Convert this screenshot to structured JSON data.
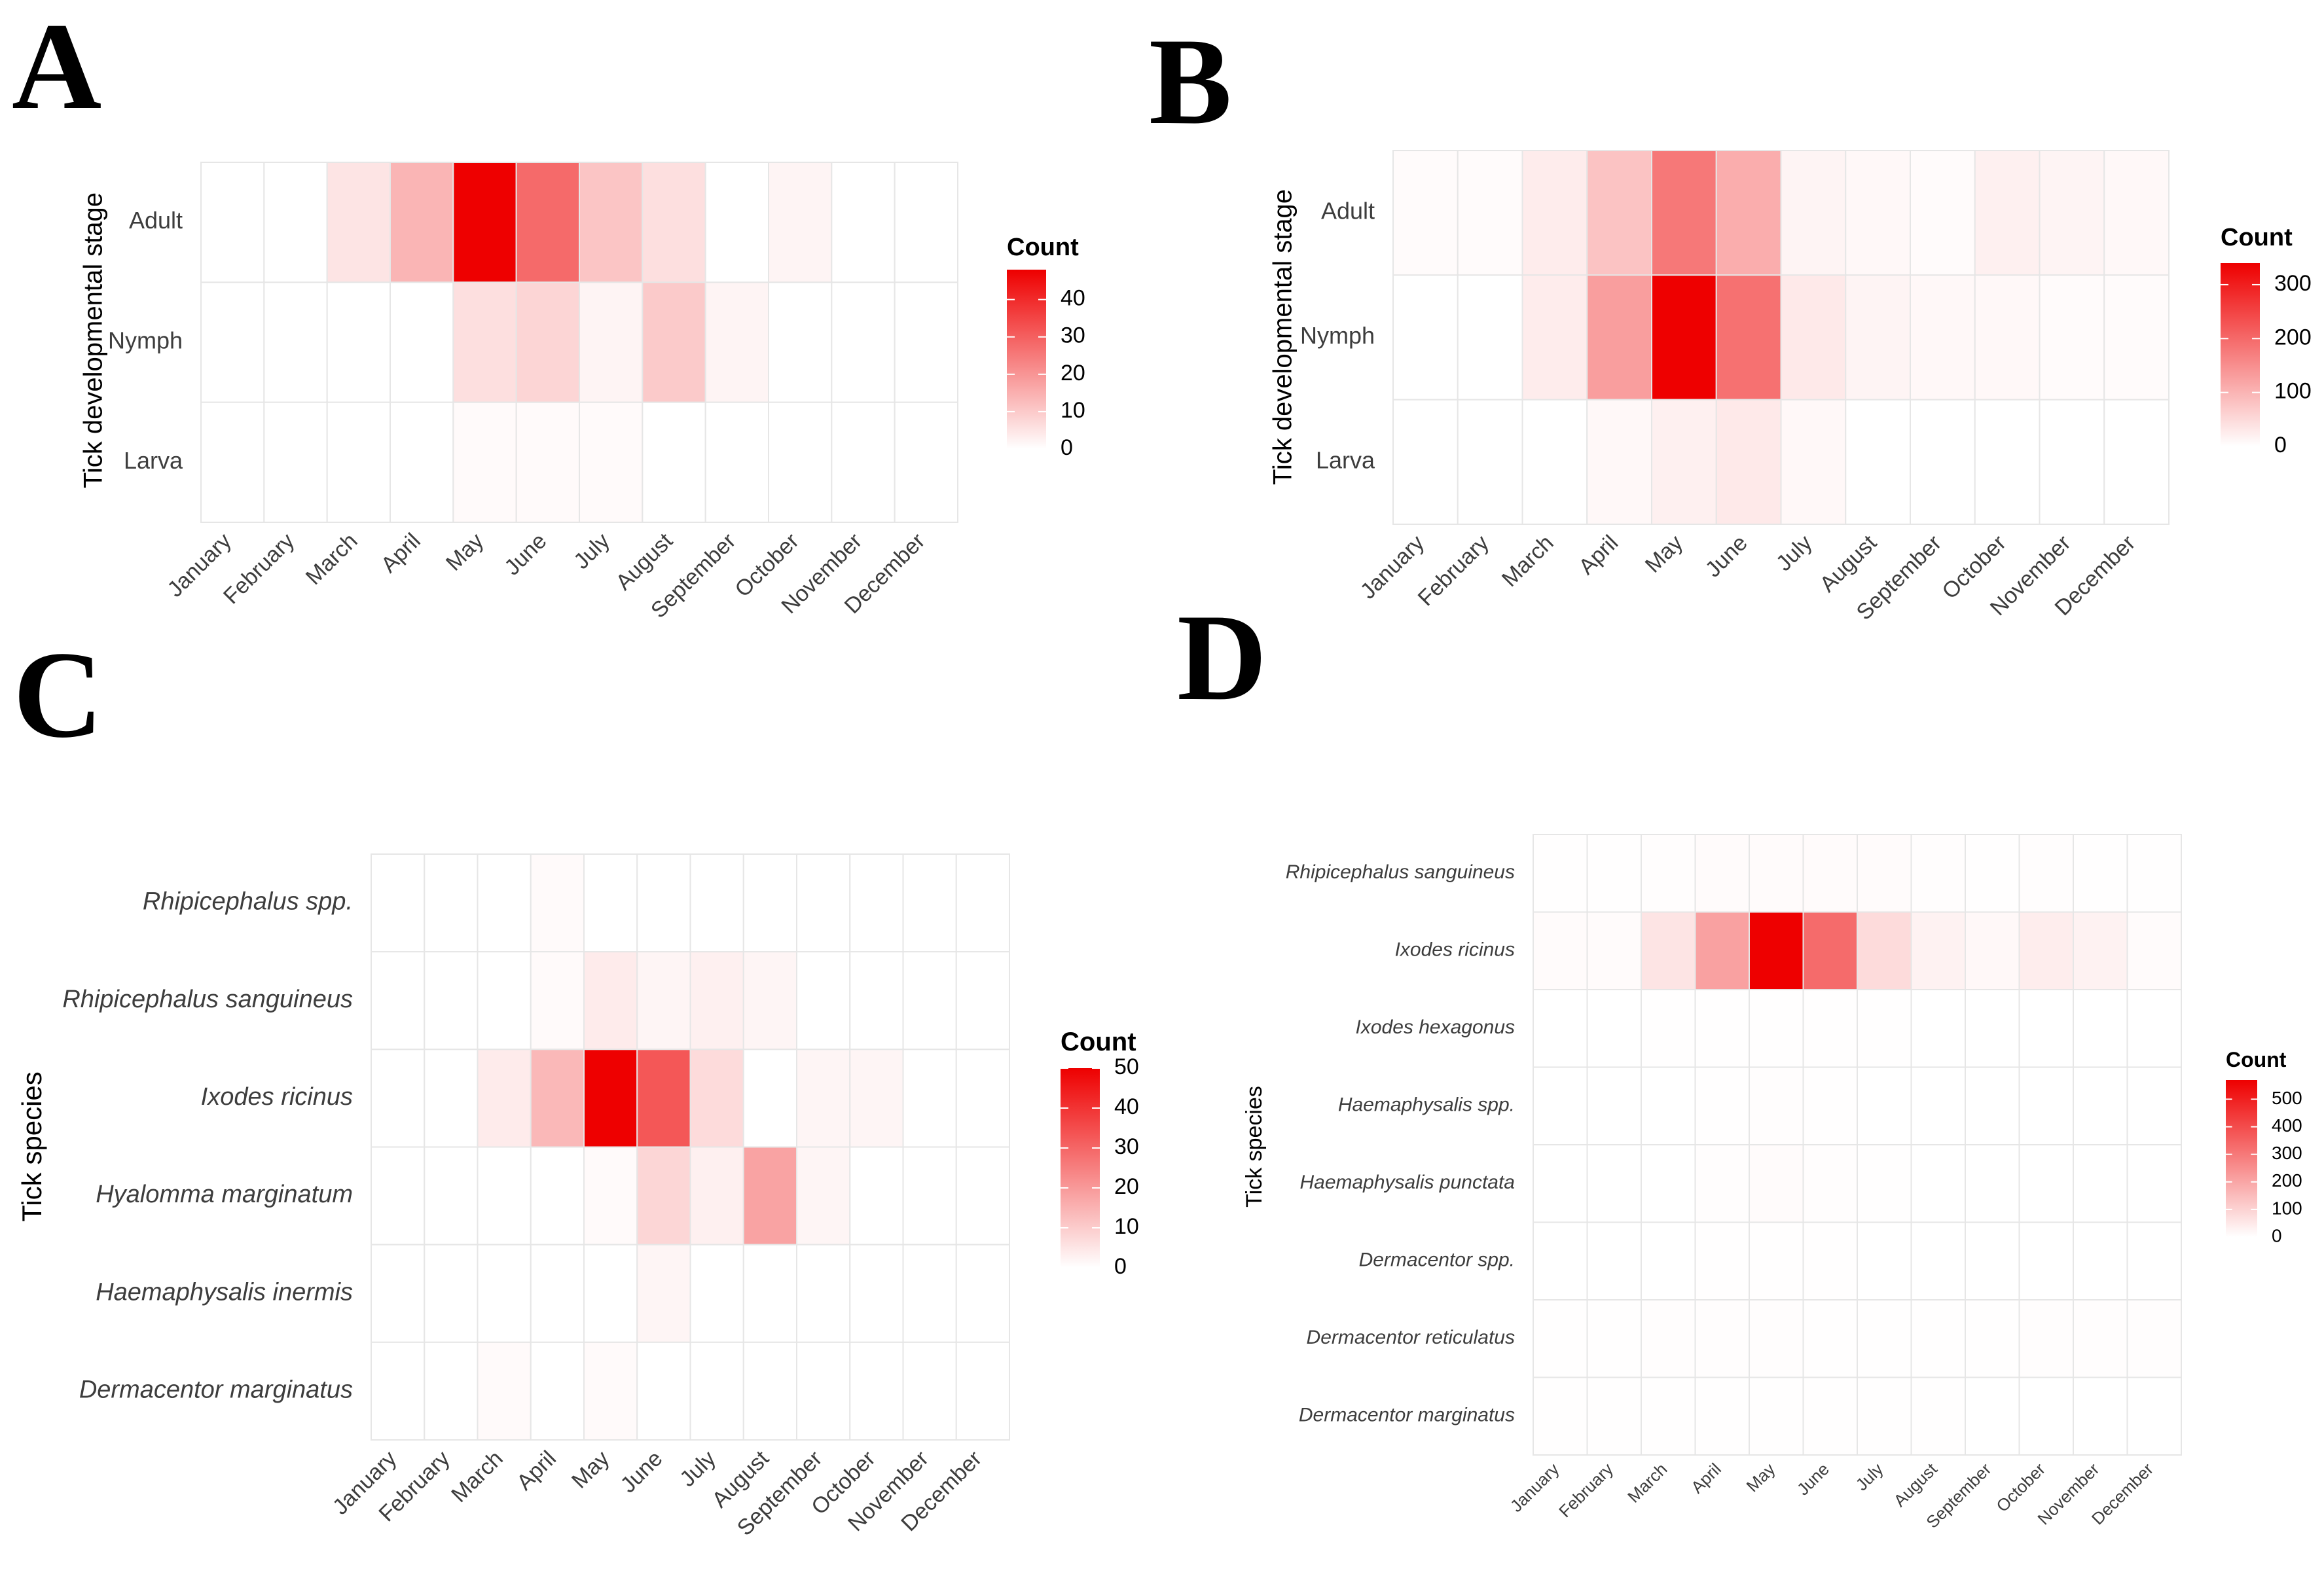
{
  "colors": {
    "low": "#ffffff",
    "high": "#ee0000",
    "grid": "#e6e6e6"
  },
  "chart_data": [
    {
      "type": "heatmap",
      "panel": "A",
      "xlabel": "",
      "ylabel": "Tick developmental stage",
      "legend_title": "Count",
      "legend_ticks": [
        0,
        10,
        20,
        30,
        40
      ],
      "legend_max": 48,
      "legend_position": "right",
      "categories": [
        "January",
        "February",
        "March",
        "April",
        "May",
        "June",
        "July",
        "August",
        "September",
        "October",
        "November",
        "December"
      ],
      "rows": [
        "Adult",
        "Nymph",
        "Larva"
      ],
      "values": [
        [
          0,
          0,
          5,
          14,
          48,
          28,
          11,
          6,
          0,
          2,
          0,
          0
        ],
        [
          0,
          0,
          0,
          0,
          6,
          8,
          2,
          10,
          2,
          0,
          0,
          0
        ],
        [
          0,
          0,
          0,
          0,
          1,
          1,
          1,
          0,
          0,
          0,
          0,
          0
        ]
      ]
    },
    {
      "type": "heatmap",
      "panel": "B",
      "xlabel": "",
      "ylabel": "Tick developmental stage",
      "legend_title": "Count",
      "legend_ticks": [
        0,
        100,
        200,
        300
      ],
      "legend_max": 340,
      "legend_position": "right",
      "categories": [
        "January",
        "February",
        "March",
        "April",
        "May",
        "June",
        "July",
        "August",
        "September",
        "October",
        "November",
        "December"
      ],
      "rows": [
        "Adult",
        "Nymph",
        "Larva"
      ],
      "values": [
        [
          5,
          5,
          25,
          80,
          180,
          110,
          15,
          10,
          5,
          20,
          15,
          10
        ],
        [
          0,
          0,
          25,
          130,
          340,
          190,
          30,
          15,
          10,
          10,
          5,
          5
        ],
        [
          0,
          0,
          0,
          10,
          20,
          30,
          10,
          0,
          0,
          0,
          0,
          0
        ]
      ]
    },
    {
      "type": "heatmap",
      "panel": "C",
      "xlabel": "",
      "ylabel": "Tick species",
      "legend_title": "Count",
      "legend_ticks": [
        0,
        10,
        20,
        30,
        40,
        50
      ],
      "legend_max": 50,
      "legend_position": "right",
      "categories": [
        "January",
        "February",
        "March",
        "April",
        "May",
        "June",
        "July",
        "August",
        "September",
        "October",
        "November",
        "December"
      ],
      "rows": [
        "Rhipicephalus spp.",
        "Rhipicephalus sanguineus",
        "Ixodes ricinus",
        "Hyalomma marginatum",
        "Haemaphysalis inermis",
        "Dermacentor marginatus"
      ],
      "values": [
        [
          0,
          0,
          0,
          1,
          0,
          0,
          0,
          0,
          0,
          0,
          0,
          0
        ],
        [
          0,
          0,
          0,
          1,
          4,
          2,
          3,
          2,
          0,
          0,
          0,
          0
        ],
        [
          0,
          0,
          4,
          14,
          50,
          33,
          7,
          0,
          2,
          2,
          0,
          0
        ],
        [
          0,
          0,
          0,
          0,
          1,
          8,
          3,
          18,
          2,
          0,
          0,
          0
        ],
        [
          0,
          0,
          0,
          0,
          0,
          2,
          0,
          0,
          0,
          0,
          0,
          0
        ],
        [
          0,
          0,
          1,
          0,
          1,
          0,
          0,
          0,
          0,
          0,
          0,
          0
        ]
      ]
    },
    {
      "type": "heatmap",
      "panel": "D",
      "xlabel": "",
      "ylabel": "Tick species",
      "legend_title": "Count",
      "legend_ticks": [
        0,
        100,
        200,
        300,
        400,
        500
      ],
      "legend_max": 570,
      "legend_position": "right",
      "categories": [
        "January",
        "February",
        "March",
        "April",
        "May",
        "June",
        "July",
        "August",
        "September",
        "October",
        "November",
        "December"
      ],
      "rows": [
        "Rhipicephalus sanguineus",
        "Ixodes ricinus",
        "Ixodes hexagonus",
        "Haemaphysalis spp.",
        "Haemaphysalis punctata",
        "Dermacentor spp.",
        "Dermacentor reticulatus",
        "Dermacentor marginatus"
      ],
      "values": [
        [
          3,
          3,
          5,
          10,
          10,
          10,
          8,
          5,
          3,
          5,
          3,
          3
        ],
        [
          10,
          10,
          60,
          210,
          570,
          330,
          80,
          30,
          15,
          40,
          30,
          10
        ],
        [
          0,
          0,
          2,
          3,
          3,
          3,
          2,
          0,
          0,
          0,
          0,
          0
        ],
        [
          0,
          0,
          0,
          2,
          5,
          3,
          0,
          0,
          0,
          0,
          0,
          0
        ],
        [
          0,
          0,
          0,
          5,
          10,
          5,
          3,
          0,
          0,
          0,
          0,
          0
        ],
        [
          0,
          0,
          0,
          2,
          3,
          2,
          0,
          0,
          0,
          0,
          0,
          0
        ],
        [
          3,
          3,
          5,
          5,
          5,
          3,
          3,
          3,
          3,
          5,
          5,
          5
        ],
        [
          2,
          2,
          3,
          3,
          3,
          2,
          2,
          2,
          0,
          0,
          0,
          0
        ]
      ]
    }
  ]
}
